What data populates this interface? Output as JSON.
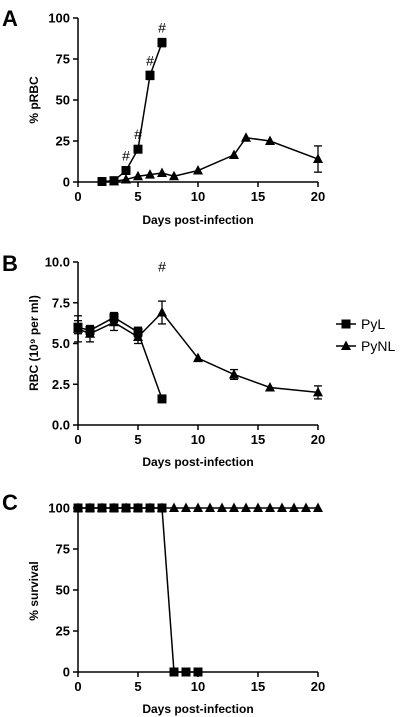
{
  "chart_data": [
    {
      "panel": "A",
      "type": "line",
      "xlabel": "Days post-infection",
      "ylabel": "% pRBC",
      "xlim": [
        0,
        20
      ],
      "ylim": [
        0,
        100
      ],
      "xticks": [
        "0",
        "5",
        "10",
        "15",
        "20"
      ],
      "yticks": [
        "0",
        "25",
        "50",
        "75",
        "100"
      ],
      "series": [
        {
          "name": "PyL",
          "marker": "square",
          "x": [
            2,
            3,
            4,
            5,
            6,
            7
          ],
          "y": [
            0.3,
            0.8,
            7,
            20,
            65,
            85
          ],
          "err": [
            0,
            0,
            1.5,
            2,
            2.5,
            2.5
          ]
        },
        {
          "name": "PyNL",
          "marker": "triangle",
          "x": [
            3,
            4,
            5,
            6,
            7,
            8,
            10,
            13,
            14,
            16,
            20
          ],
          "y": [
            0.4,
            1.5,
            3.5,
            4.5,
            5.5,
            3.5,
            7,
            16.5,
            27,
            25,
            14
          ],
          "err": [
            0,
            0,
            0,
            0,
            0,
            0,
            0,
            0,
            0,
            0,
            8
          ]
        }
      ],
      "annotations": [
        {
          "text": "#",
          "x": 4,
          "y": 7
        },
        {
          "text": "#",
          "x": 5,
          "y": 20
        },
        {
          "text": "#",
          "x": 6,
          "y": 65
        },
        {
          "text": "#",
          "x": 7,
          "y": 85
        }
      ]
    },
    {
      "panel": "B",
      "type": "line",
      "xlabel": "Days post-infection",
      "ylabel": "RBC (10⁹ per ml)",
      "xlim": [
        0,
        20
      ],
      "ylim": [
        0,
        10
      ],
      "xticks": [
        "0",
        "5",
        "10",
        "15",
        "20"
      ],
      "yticks": [
        "0.0",
        "2.5",
        "5.0",
        "7.5",
        "10.0"
      ],
      "series": [
        {
          "name": "PyL",
          "marker": "square",
          "x": [
            0,
            1,
            3,
            5,
            7
          ],
          "y": [
            6.0,
            5.8,
            6.6,
            5.7,
            1.6
          ],
          "err": [
            0.4,
            0.3,
            0.3,
            0.3,
            0.2
          ]
        },
        {
          "name": "PyNL",
          "marker": "triangle",
          "x": [
            0,
            1,
            3,
            5,
            7,
            10,
            13,
            16,
            20
          ],
          "y": [
            5.9,
            5.6,
            6.3,
            5.4,
            6.9,
            4.1,
            3.1,
            2.3,
            2.0
          ],
          "err": [
            0.8,
            0.5,
            0.5,
            0.4,
            0.7,
            0,
            0.3,
            0,
            0.4
          ]
        }
      ],
      "annotations": [
        {
          "text": "#",
          "x": 7,
          "y": 8.8
        }
      ],
      "legend": {
        "position": "right",
        "entries": [
          "PyL",
          "PyNL"
        ]
      }
    },
    {
      "panel": "C",
      "type": "line",
      "xlabel": "Days post-infection",
      "ylabel": "% survival",
      "xlim": [
        0,
        20
      ],
      "ylim": [
        0,
        100
      ],
      "xticks": [
        "0",
        "5",
        "10",
        "15",
        "20"
      ],
      "yticks": [
        "0",
        "25",
        "50",
        "75",
        "100"
      ],
      "series": [
        {
          "name": "PyL",
          "marker": "square",
          "x": [
            0,
            1,
            2,
            3,
            4,
            5,
            6,
            7,
            8,
            9,
            10
          ],
          "y": [
            100,
            100,
            100,
            100,
            100,
            100,
            100,
            100,
            0,
            0,
            0
          ]
        },
        {
          "name": "PyNL",
          "marker": "triangle",
          "x": [
            0,
            1,
            2,
            3,
            4,
            5,
            6,
            7,
            8,
            9,
            10,
            11,
            12,
            13,
            14,
            15,
            16,
            17,
            18,
            19,
            20
          ],
          "y": [
            100,
            100,
            100,
            100,
            100,
            100,
            100,
            100,
            100,
            100,
            100,
            100,
            100,
            100,
            100,
            100,
            100,
            100,
            100,
            100,
            100
          ]
        }
      ]
    }
  ]
}
